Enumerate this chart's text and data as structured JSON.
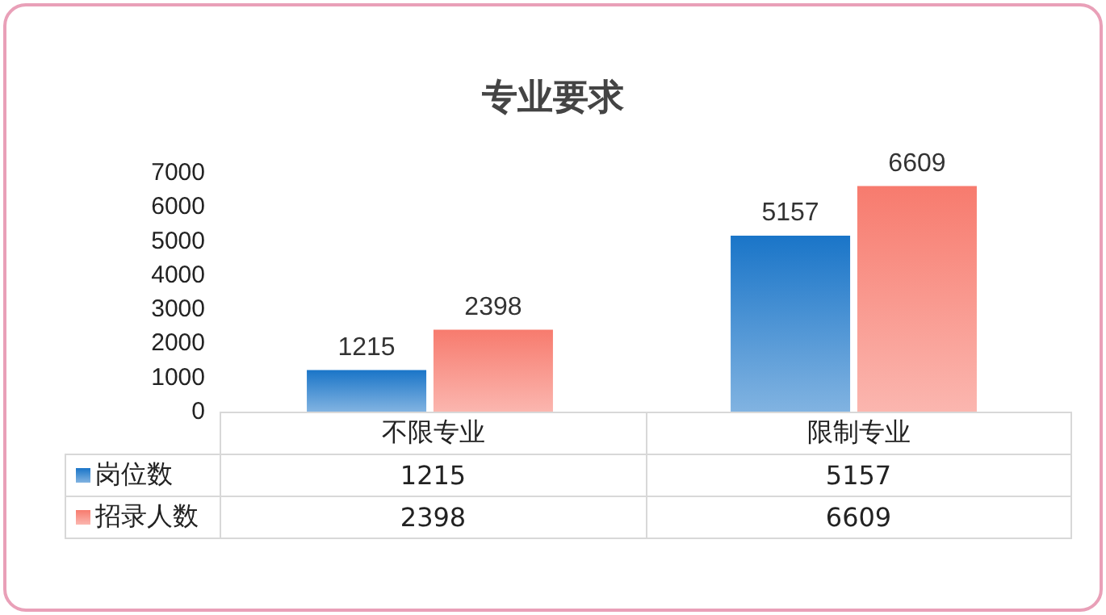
{
  "chart_data": {
    "type": "bar",
    "title": "专业要求",
    "categories": [
      "不限专业",
      "限制专业"
    ],
    "series": [
      {
        "name": "岗位数",
        "color": "#1a75c8",
        "values": [
          1215,
          5157
        ]
      },
      {
        "name": "招录人数",
        "color": "#f77b6e",
        "values": [
          2398,
          6609
        ]
      }
    ],
    "annotations": [
      "1215",
      "5157",
      "2398",
      "6609"
    ],
    "ylim": [
      0,
      7000
    ],
    "yticks": [
      0,
      1000,
      2000,
      3000,
      4000,
      5000,
      6000,
      7000
    ],
    "grid": false,
    "data_labels": true,
    "legend": "bottom"
  }
}
